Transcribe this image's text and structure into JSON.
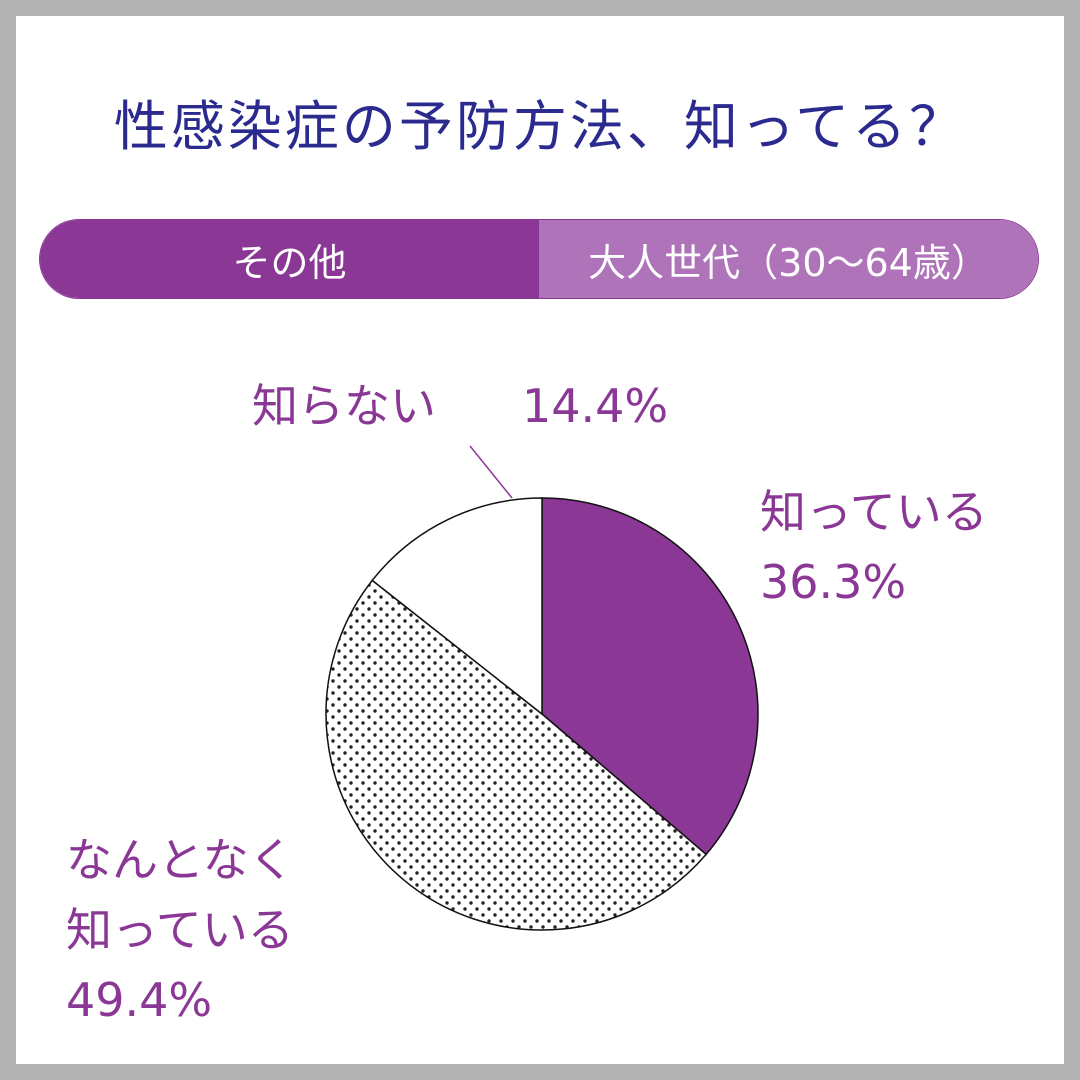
{
  "title": "性感染症の予防方法、知ってる？",
  "tabs": [
    {
      "label": "その他",
      "active": true
    },
    {
      "label": "大人世代（30～64歳）",
      "active": false
    }
  ],
  "colors": {
    "title": "#2b2a8f",
    "accent": "#8a3795",
    "accent_light": "#ae73b8"
  },
  "chart_data": {
    "type": "pie",
    "slices": [
      {
        "label": "知っている",
        "value": 36.3,
        "value_text": "36.3%",
        "fill": "solid-purple"
      },
      {
        "label": "なんとなく知っている",
        "value": 49.4,
        "value_text": "49.4%",
        "fill": "dotted"
      },
      {
        "label": "知らない",
        "value": 14.4,
        "value_text": "14.4%",
        "fill": "white"
      }
    ],
    "start_angle": "12 o'clock",
    "direction": "clockwise"
  },
  "labels": {
    "knows_line1": "知っている",
    "vaguely_line1": "なんとなく",
    "vaguely_line2": "知っている",
    "unknown_label": "知らない"
  }
}
